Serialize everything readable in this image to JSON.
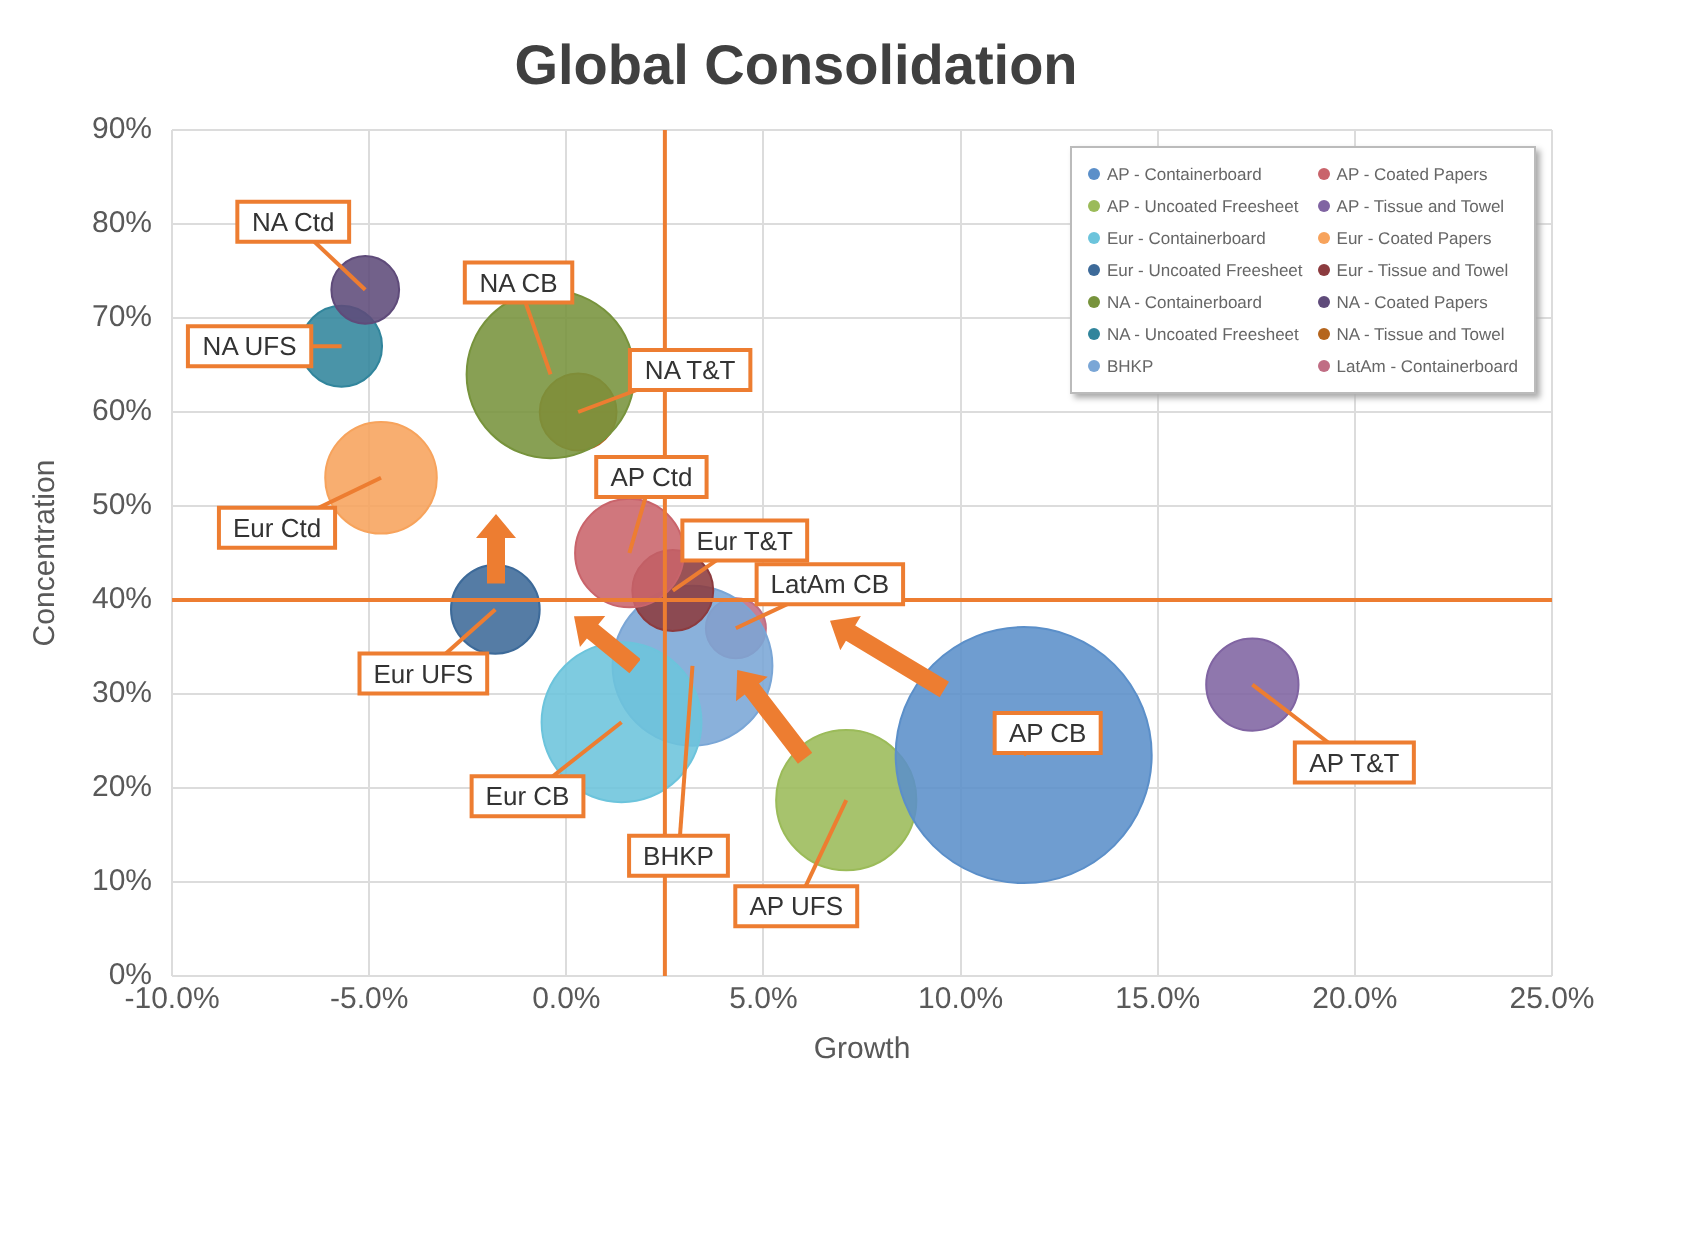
{
  "chart_data": {
    "type": "bubble",
    "title": "Global Consolidation",
    "xlabel": "Growth",
    "ylabel": "Concentration",
    "xlim": [
      -10,
      25
    ],
    "xticks": [
      {
        "value": -10,
        "label": "-10.0%"
      },
      {
        "value": -5,
        "label": "-5.0%"
      },
      {
        "value": 0,
        "label": "0.0%"
      },
      {
        "value": 5,
        "label": "5.0%"
      },
      {
        "value": 10,
        "label": "10.0%"
      },
      {
        "value": 15,
        "label": "15.0%"
      },
      {
        "value": 20,
        "label": "20.0%"
      },
      {
        "value": 25,
        "label": "25.0%"
      }
    ],
    "ylim": [
      0,
      90
    ],
    "yticks": [
      {
        "value": 0,
        "label": "0%"
      },
      {
        "value": 10,
        "label": "10%"
      },
      {
        "value": 20,
        "label": "20%"
      },
      {
        "value": 30,
        "label": "30%"
      },
      {
        "value": 40,
        "label": "40%"
      },
      {
        "value": 50,
        "label": "50%"
      },
      {
        "value": 60,
        "label": "60%"
      },
      {
        "value": 70,
        "label": "70%"
      },
      {
        "value": 80,
        "label": "80%"
      },
      {
        "value": 90,
        "label": "90%"
      }
    ],
    "grid": true,
    "legend": "top right",
    "series": [
      {
        "name": "AP - Containerboard",
        "color": "#5b8fc9",
        "x": [
          11.6
        ],
        "values": [
          23.5
        ],
        "sizes": [
          1
        ]
      },
      {
        "name": "AP - Coated Papers",
        "color": "#c9646b",
        "x": [
          1.6
        ],
        "values": [
          45
        ],
        "sizes": [
          0.18
        ]
      },
      {
        "name": "AP - Uncoated Freesheet",
        "color": "#9bbb59",
        "x": [
          7.1
        ],
        "values": [
          18.7
        ],
        "sizes": [
          0.3
        ]
      },
      {
        "name": "AP - Tissue and Towel",
        "color": "#8064a2",
        "x": [
          17.4
        ],
        "values": [
          31
        ],
        "sizes": [
          0.13
        ]
      },
      {
        "name": "Eur - Containerboard",
        "color": "#6cc4dc",
        "x": [
          1.4
        ],
        "values": [
          27
        ],
        "sizes": [
          0.39
        ]
      },
      {
        "name": "Eur - Coated Papers",
        "color": "#f7a35c",
        "x": [
          -4.7
        ],
        "values": [
          53
        ],
        "sizes": [
          0.19
        ]
      },
      {
        "name": "Eur - Uncoated Freesheet",
        "color": "#3d6a99",
        "x": [
          -1.8
        ],
        "values": [
          39
        ],
        "sizes": [
          0.12
        ]
      },
      {
        "name": "Eur - Tissue and Towel",
        "color": "#8c3b3f",
        "x": [
          2.7
        ],
        "values": [
          41
        ],
        "sizes": [
          0.1
        ]
      },
      {
        "name": "NA - Containerboard",
        "color": "#77933c",
        "x": [
          -0.4
        ],
        "values": [
          64
        ],
        "sizes": [
          0.43
        ]
      },
      {
        "name": "NA - Coated Papers",
        "color": "#5f4b7a",
        "x": [
          -5.1
        ],
        "values": [
          73
        ],
        "sizes": [
          0.07
        ]
      },
      {
        "name": "NA - Uncoated Freesheet",
        "color": "#31859c",
        "x": [
          -5.7
        ],
        "values": [
          67
        ],
        "sizes": [
          0.1
        ]
      },
      {
        "name": "NA - Tissue and Towel",
        "color": "#b5651d",
        "x": [
          0.3
        ],
        "values": [
          60
        ],
        "sizes": [
          0.09
        ]
      },
      {
        "name": "BHKP",
        "color": "#7aa6d6",
        "x": [
          3.2
        ],
        "values": [
          33
        ],
        "sizes": [
          0.39
        ]
      },
      {
        "name": "LatAm - Containerboard",
        "color": "#c06d84",
        "x": [
          4.3
        ],
        "values": [
          37
        ],
        "sizes": [
          0.055
        ]
      }
    ],
    "ref_lines": [
      {
        "axis": "x",
        "value": 2.5,
        "color": "#ed7d31"
      },
      {
        "axis": "y",
        "value": 40,
        "color": "#ed7d31"
      }
    ],
    "annotations": [
      {
        "text": "AP CB",
        "x": 11.6,
        "y": 23.5
      },
      {
        "text": "AP Ctd",
        "x": 1.6,
        "y": 45
      },
      {
        "text": "AP UFS",
        "x": 7.1,
        "y": 18.7
      },
      {
        "text": "AP T&T",
        "x": 17.4,
        "y": 31
      },
      {
        "text": "Eur CB",
        "x": 1.4,
        "y": 27
      },
      {
        "text": "Eur Ctd",
        "x": -4.7,
        "y": 53
      },
      {
        "text": "Eur UFS",
        "x": -1.8,
        "y": 39
      },
      {
        "text": "Eur T&T",
        "x": 2.7,
        "y": 41
      },
      {
        "text": "NA CB",
        "x": -0.4,
        "y": 64
      },
      {
        "text": "NA Ctd",
        "x": -5.1,
        "y": 73
      },
      {
        "text": "NA UFS",
        "x": -5.7,
        "y": 67
      },
      {
        "text": "NA T&T",
        "x": 0.3,
        "y": 60
      },
      {
        "text": "BHKP",
        "x": 3.2,
        "y": 33
      },
      {
        "text": "LatAm CB",
        "x": 4.3,
        "y": 37
      }
    ]
  }
}
